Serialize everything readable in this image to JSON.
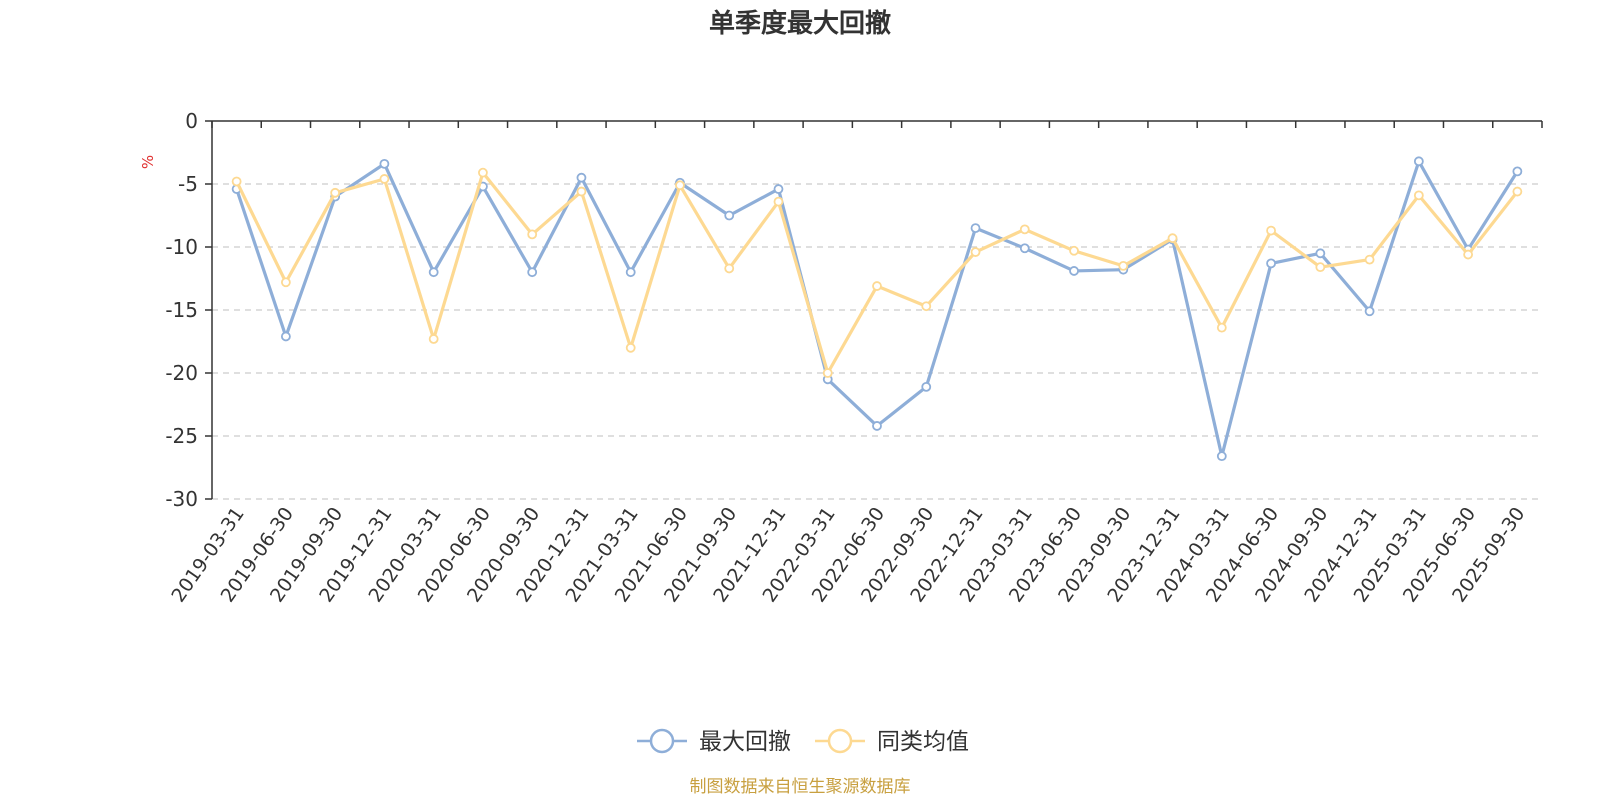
{
  "chart_data": {
    "type": "line",
    "title": "单季度最大回撤",
    "ylabel": "%",
    "xlabel": "",
    "ylim": [
      -30,
      0
    ],
    "yticks": [
      0,
      -5,
      -10,
      -15,
      -20,
      -25,
      -30
    ],
    "grid": true,
    "legend_position": "bottom-center",
    "categories": [
      "2019-03-31",
      "2019-06-30",
      "2019-09-30",
      "2019-12-31",
      "2020-03-31",
      "2020-06-30",
      "2020-09-30",
      "2020-12-31",
      "2021-03-31",
      "2021-06-30",
      "2021-09-30",
      "2021-12-31",
      "2022-03-31",
      "2022-06-30",
      "2022-09-30",
      "2022-12-31",
      "2023-03-31",
      "2023-06-30",
      "2023-09-30",
      "2023-12-31",
      "2024-03-31",
      "2024-06-30",
      "2024-09-30",
      "2024-12-31",
      "2025-03-31",
      "2025-06-30",
      "2025-09-30"
    ],
    "series": [
      {
        "name": "最大回撤",
        "color": "#8eaed8",
        "values": [
          -5.4,
          -17.1,
          -6.0,
          -3.4,
          -12.0,
          -5.2,
          -12.0,
          -4.5,
          -12.0,
          -4.9,
          -7.5,
          -5.4,
          -20.5,
          -24.2,
          -21.1,
          -8.5,
          -10.1,
          -11.9,
          -11.8,
          -9.4,
          -26.6,
          -11.3,
          -10.5,
          -15.1,
          -3.2,
          -10.2,
          -4.0
        ]
      },
      {
        "name": "同类均值",
        "color": "#fdd992",
        "values": [
          -4.8,
          -12.8,
          -5.7,
          -4.6,
          -17.3,
          -4.1,
          -9.0,
          -5.6,
          -18.0,
          -5.1,
          -11.7,
          -6.4,
          -20.0,
          -13.1,
          -14.7,
          -10.4,
          -8.6,
          -10.3,
          -11.5,
          -9.3,
          -16.4,
          -8.7,
          -11.6,
          -11.0,
          -5.9,
          -10.6,
          -5.6
        ]
      }
    ],
    "source_note": "制图数据来自恒生聚源数据库",
    "source_note_color": "#c8a040",
    "ylabel_color": "#e03030"
  }
}
